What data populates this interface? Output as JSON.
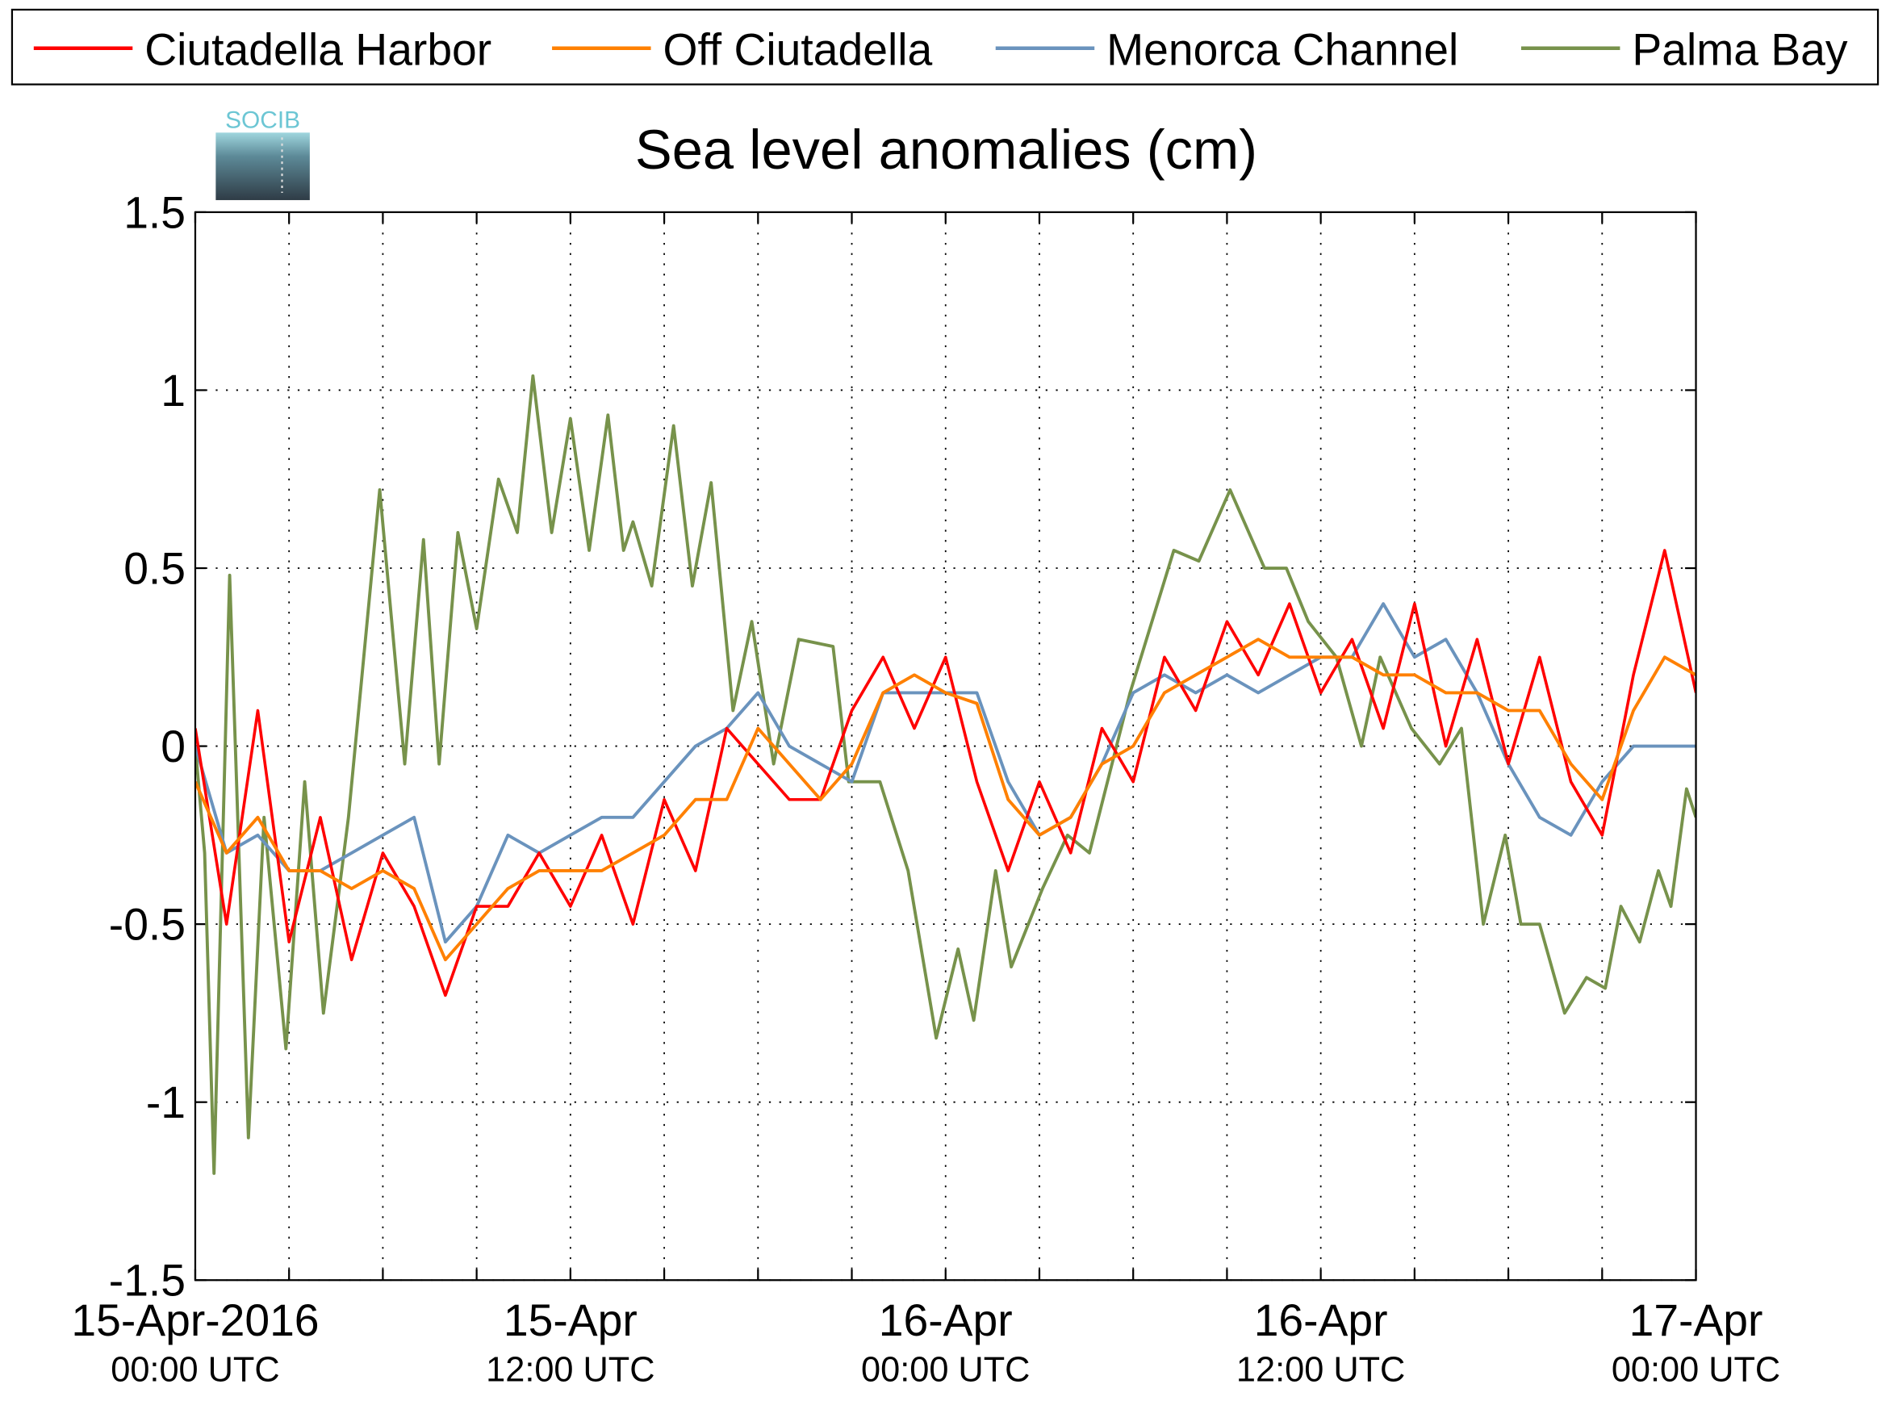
{
  "chart_data": {
    "type": "line",
    "title": "Sea level anomalies (cm)",
    "logo_text": "SOCIB",
    "xlim": [
      0,
      48
    ],
    "xticks": [
      {
        "value": 0,
        "label": "15-Apr-2016"
      },
      {
        "value": 12,
        "label": "15-Apr"
      },
      {
        "value": 24,
        "label": "16-Apr"
      },
      {
        "value": 36,
        "label": "16-Apr"
      },
      {
        "value": 48,
        "label": "17-Apr"
      }
    ],
    "xtick_time_labels": [
      "00:00 UTC",
      "12:00 UTC",
      "00:00 UTC",
      "12:00 UTC",
      "00:00 UTC"
    ],
    "xgrid_minor": [
      3,
      6,
      9,
      15,
      18,
      21,
      27,
      30,
      33,
      39,
      42,
      45
    ],
    "ylim": [
      -1.5,
      1.5
    ],
    "yticks": [
      -1.5,
      -1,
      -0.5,
      0,
      0.5,
      1,
      1.5
    ],
    "grid": true,
    "series": [
      {
        "name": "Ciutadella Harbor",
        "color": "#ff0000",
        "x": [
          0,
          1,
          2,
          3,
          4,
          5,
          6,
          7,
          8,
          9,
          10,
          11,
          12,
          13,
          14,
          15,
          16,
          17,
          18,
          19,
          20,
          21,
          22,
          23,
          24,
          25,
          26,
          27,
          28,
          29,
          30,
          31,
          32,
          33,
          34,
          35,
          36,
          37,
          38,
          39,
          40,
          41,
          42,
          43,
          44,
          45,
          46,
          47,
          48
        ],
        "values": [
          0.05,
          -0.5,
          0.1,
          -0.55,
          -0.2,
          -0.6,
          -0.3,
          -0.45,
          -0.7,
          -0.45,
          -0.45,
          -0.3,
          -0.45,
          -0.25,
          -0.5,
          -0.15,
          -0.35,
          0.05,
          -0.05,
          -0.15,
          -0.15,
          0.1,
          0.25,
          0.05,
          0.25,
          -0.1,
          -0.35,
          -0.1,
          -0.3,
          0.05,
          -0.1,
          0.25,
          0.1,
          0.35,
          0.2,
          0.4,
          0.15,
          0.3,
          0.05,
          0.4,
          0.0,
          0.3,
          -0.05,
          0.25,
          -0.1,
          -0.25,
          0.2,
          0.55,
          0.15
        ]
      },
      {
        "name": "Off Ciutadella",
        "color": "#ff8000",
        "x": [
          0,
          1,
          2,
          3,
          4,
          5,
          6,
          7,
          8,
          9,
          10,
          11,
          12,
          13,
          14,
          15,
          16,
          17,
          18,
          19,
          20,
          21,
          22,
          23,
          24,
          25,
          26,
          27,
          28,
          29,
          30,
          31,
          32,
          33,
          34,
          35,
          36,
          37,
          38,
          39,
          40,
          41,
          42,
          43,
          44,
          45,
          46,
          47,
          48
        ],
        "values": [
          -0.1,
          -0.3,
          -0.2,
          -0.35,
          -0.35,
          -0.4,
          -0.35,
          -0.4,
          -0.6,
          -0.5,
          -0.4,
          -0.35,
          -0.35,
          -0.35,
          -0.3,
          -0.25,
          -0.15,
          -0.15,
          0.05,
          -0.05,
          -0.15,
          -0.05,
          0.15,
          0.2,
          0.15,
          0.12,
          -0.15,
          -0.25,
          -0.2,
          -0.05,
          0.0,
          0.15,
          0.2,
          0.25,
          0.3,
          0.25,
          0.25,
          0.25,
          0.2,
          0.2,
          0.15,
          0.15,
          0.1,
          0.1,
          -0.05,
          -0.15,
          0.1,
          0.25,
          0.2
        ]
      },
      {
        "name": "Menorca Channel",
        "color": "#6a93bd",
        "x": [
          0,
          1,
          2,
          3,
          4,
          5,
          6,
          7,
          8,
          9,
          10,
          11,
          12,
          13,
          14,
          15,
          16,
          17,
          18,
          19,
          20,
          21,
          22,
          23,
          24,
          25,
          26,
          27,
          28,
          29,
          30,
          31,
          32,
          33,
          34,
          35,
          36,
          37,
          38,
          39,
          40,
          41,
          42,
          43,
          44,
          45,
          46,
          47,
          48
        ],
        "values": [
          0.0,
          -0.3,
          -0.25,
          -0.35,
          -0.35,
          -0.3,
          -0.25,
          -0.2,
          -0.55,
          -0.45,
          -0.25,
          -0.3,
          -0.25,
          -0.2,
          -0.2,
          -0.1,
          0.0,
          0.05,
          0.15,
          0.0,
          -0.05,
          -0.1,
          0.15,
          0.15,
          0.15,
          0.15,
          -0.1,
          -0.25,
          -0.2,
          -0.05,
          0.15,
          0.2,
          0.15,
          0.2,
          0.15,
          0.2,
          0.25,
          0.25,
          0.4,
          0.25,
          0.3,
          0.15,
          -0.05,
          -0.2,
          -0.25,
          -0.1,
          0.0,
          0.0,
          0.0
        ]
      },
      {
        "name": "Palma Bay",
        "color": "#77924b",
        "x": [
          0,
          0.3,
          0.6,
          1.1,
          1.7,
          2.2,
          2.9,
          3.5,
          4.1,
          4.9,
          5.9,
          6.7,
          7.3,
          7.8,
          8.4,
          9,
          9.7,
          10.3,
          10.8,
          11.4,
          12,
          12.6,
          13.2,
          13.7,
          14,
          14.6,
          15.3,
          15.9,
          16.5,
          17.2,
          17.8,
          18.5,
          19.3,
          20.4,
          20.9,
          21.9,
          22.8,
          23.7,
          24.4,
          24.9,
          25.6,
          26.1,
          27.1,
          27.9,
          28.6,
          29.9,
          31.3,
          32.1,
          33.1,
          34.2,
          34.9,
          35.6,
          36.5,
          37.3,
          37.9,
          38.9,
          39.8,
          40.5,
          41.2,
          41.9,
          42.4,
          43,
          43.8,
          44.5,
          45.1,
          45.6,
          46.2,
          46.8,
          47.2,
          47.7,
          48
        ],
        "values": [
          0,
          -0.3,
          -1.2,
          0.48,
          -1.1,
          -0.2,
          -0.85,
          -0.1,
          -0.75,
          -0.2,
          0.72,
          -0.05,
          0.58,
          -0.05,
          0.6,
          0.33,
          0.75,
          0.6,
          1.04,
          0.6,
          0.92,
          0.55,
          0.93,
          0.55,
          0.63,
          0.45,
          0.9,
          0.45,
          0.74,
          0.1,
          0.35,
          -0.05,
          0.3,
          0.28,
          -0.1,
          -0.1,
          -0.35,
          -0.82,
          -0.57,
          -0.77,
          -0.35,
          -0.62,
          -0.4,
          -0.25,
          -0.3,
          0.15,
          0.55,
          0.52,
          0.72,
          0.5,
          0.5,
          0.35,
          0.25,
          0.0,
          0.25,
          0.05,
          -0.05,
          0.05,
          -0.5,
          -0.25,
          -0.5,
          -0.5,
          -0.75,
          -0.65,
          -0.68,
          -0.45,
          -0.55,
          -0.35,
          -0.45,
          -0.12,
          -0.2
        ]
      }
    ]
  }
}
